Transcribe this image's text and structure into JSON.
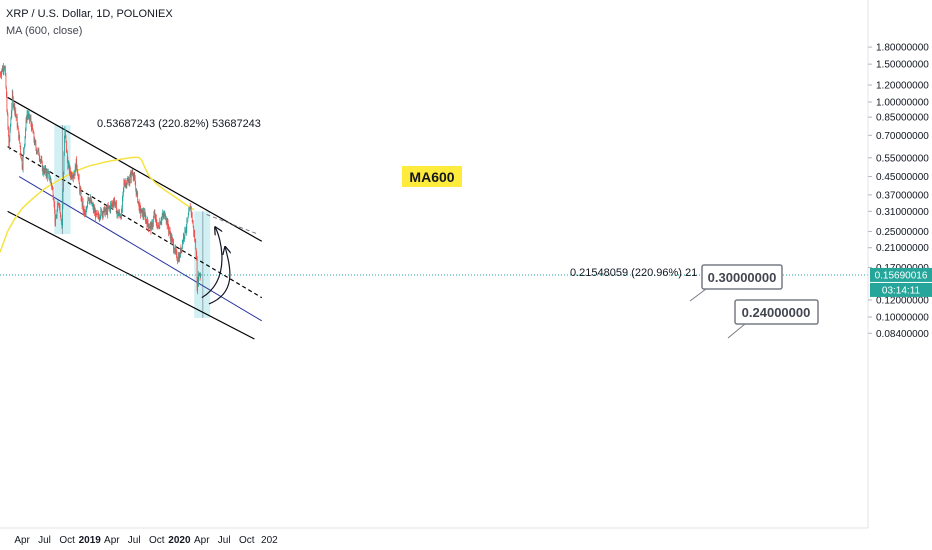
{
  "header": {
    "symbol_line": "XRP / U.S. Dollar, 1D, POLONIEX",
    "indicator_line": "MA (600, close)"
  },
  "chart_data": {
    "type": "line",
    "log_scale": true,
    "grid": false,
    "y_ticks": [
      {
        "v": 1.8,
        "label": "1.80000000"
      },
      {
        "v": 1.5,
        "label": "1.50000000"
      },
      {
        "v": 1.2,
        "label": "1.20000000"
      },
      {
        "v": 1.0,
        "label": "1.00000000"
      },
      {
        "v": 0.85,
        "label": "0.85000000"
      },
      {
        "v": 0.7,
        "label": "0.70000000"
      },
      {
        "v": 0.55,
        "label": "0.55000000"
      },
      {
        "v": 0.45,
        "label": "0.45000000"
      },
      {
        "v": 0.37,
        "label": "0.37000000"
      },
      {
        "v": 0.31,
        "label": "0.31000000"
      },
      {
        "v": 0.25,
        "label": "0.25000000"
      },
      {
        "v": 0.21,
        "label": "0.21000000"
      },
      {
        "v": 0.17,
        "label": "0.17000000"
      },
      {
        "v": 0.12,
        "label": "0.12000000"
      },
      {
        "v": 0.1,
        "label": "0.10000000"
      },
      {
        "v": 0.084,
        "label": "0.08400000"
      }
    ],
    "x_ticks": [
      {
        "d": "2018-04-01",
        "label": "Apr",
        "bold": false
      },
      {
        "d": "2018-07-01",
        "label": "Jul",
        "bold": false
      },
      {
        "d": "2018-10-01",
        "label": "Oct",
        "bold": false
      },
      {
        "d": "2019-01-01",
        "label": "2019",
        "bold": true
      },
      {
        "d": "2019-04-01",
        "label": "Apr",
        "bold": false
      },
      {
        "d": "2019-07-01",
        "label": "Jul",
        "bold": false
      },
      {
        "d": "2019-10-01",
        "label": "Oct",
        "bold": false
      },
      {
        "d": "2020-01-01",
        "label": "2020",
        "bold": true
      },
      {
        "d": "2020-04-01",
        "label": "Apr",
        "bold": false
      },
      {
        "d": "2020-07-01",
        "label": "Jul",
        "bold": false
      },
      {
        "d": "2020-10-01",
        "label": "Oct",
        "bold": false
      },
      {
        "d": "2021-01-01",
        "label": "202",
        "bold": false
      }
    ],
    "series": [
      {
        "name": "XRP / U.S. Dollar",
        "color": "#ef5350",
        "points": [
          [
            "2018-01-01",
            1.35
          ],
          [
            "2018-01-20",
            1.5
          ],
          [
            "2018-02-06",
            0.62
          ],
          [
            "2018-02-20",
            1.05
          ],
          [
            "2018-03-05",
            0.9
          ],
          [
            "2018-03-20",
            0.68
          ],
          [
            "2018-04-02",
            0.5
          ],
          [
            "2018-04-20",
            0.88
          ],
          [
            "2018-05-05",
            0.82
          ],
          [
            "2018-05-25",
            0.62
          ],
          [
            "2018-06-10",
            0.57
          ],
          [
            "2018-06-25",
            0.48
          ],
          [
            "2018-07-10",
            0.47
          ],
          [
            "2018-07-25",
            0.44
          ],
          [
            "2018-08-08",
            0.36
          ],
          [
            "2018-08-14",
            0.27
          ],
          [
            "2018-08-28",
            0.35
          ],
          [
            "2018-09-10",
            0.27
          ],
          [
            "2018-09-21",
            0.75
          ],
          [
            "2018-10-03",
            0.52
          ],
          [
            "2018-10-15",
            0.46
          ],
          [
            "2018-11-01",
            0.47
          ],
          [
            "2018-11-08",
            0.53
          ],
          [
            "2018-11-20",
            0.4
          ],
          [
            "2018-12-05",
            0.32
          ],
          [
            "2018-12-15",
            0.29
          ],
          [
            "2018-12-25",
            0.37
          ],
          [
            "2019-01-10",
            0.33
          ],
          [
            "2019-01-30",
            0.29
          ],
          [
            "2019-02-20",
            0.31
          ],
          [
            "2019-03-10",
            0.31
          ],
          [
            "2019-03-30",
            0.33
          ],
          [
            "2019-04-10",
            0.35
          ],
          [
            "2019-04-25",
            0.3
          ],
          [
            "2019-05-10",
            0.3
          ],
          [
            "2019-05-20",
            0.42
          ],
          [
            "2019-06-10",
            0.43
          ],
          [
            "2019-06-25",
            0.48
          ],
          [
            "2019-07-10",
            0.38
          ],
          [
            "2019-07-25",
            0.31
          ],
          [
            "2019-08-10",
            0.3
          ],
          [
            "2019-08-25",
            0.27
          ],
          [
            "2019-09-10",
            0.26
          ],
          [
            "2019-09-20",
            0.3
          ],
          [
            "2019-10-05",
            0.26
          ],
          [
            "2019-10-20",
            0.29
          ],
          [
            "2019-11-05",
            0.3
          ],
          [
            "2019-11-20",
            0.25
          ],
          [
            "2019-12-05",
            0.22
          ],
          [
            "2019-12-20",
            0.19
          ],
          [
            "2020-01-01",
            0.19
          ],
          [
            "2020-01-18",
            0.24
          ],
          [
            "2020-02-01",
            0.27
          ],
          [
            "2020-02-15",
            0.33
          ],
          [
            "2020-03-01",
            0.24
          ],
          [
            "2020-03-10",
            0.2
          ],
          [
            "2020-03-13",
            0.14
          ],
          [
            "2020-03-20",
            0.16
          ],
          [
            "2020-03-27",
            0.1569
          ]
        ]
      },
      {
        "name": "MA (600, close)",
        "color": "#f5e342",
        "points": [
          [
            "2018-01-01",
            0.2
          ],
          [
            "2018-02-01",
            0.25
          ],
          [
            "2018-03-01",
            0.285
          ],
          [
            "2018-04-01",
            0.32
          ],
          [
            "2018-05-01",
            0.345
          ],
          [
            "2018-06-01",
            0.37
          ],
          [
            "2018-07-01",
            0.395
          ],
          [
            "2018-08-01",
            0.415
          ],
          [
            "2018-09-01",
            0.435
          ],
          [
            "2018-10-01",
            0.455
          ],
          [
            "2018-11-01",
            0.475
          ],
          [
            "2018-12-01",
            0.49
          ],
          [
            "2019-01-01",
            0.505
          ],
          [
            "2019-02-01",
            0.515
          ],
          [
            "2019-03-01",
            0.525
          ],
          [
            "2019-04-01",
            0.533
          ],
          [
            "2019-05-01",
            0.54
          ],
          [
            "2019-06-01",
            0.547
          ],
          [
            "2019-07-01",
            0.553
          ],
          [
            "2019-07-20",
            0.552
          ],
          [
            "2019-08-01",
            0.535
          ],
          [
            "2019-08-15",
            0.49
          ],
          [
            "2019-09-01",
            0.45
          ],
          [
            "2019-10-01",
            0.415
          ],
          [
            "2019-11-01",
            0.39
          ],
          [
            "2019-12-01",
            0.37
          ],
          [
            "2020-01-01",
            0.35
          ],
          [
            "2020-02-01",
            0.33
          ],
          [
            "2020-03-01",
            0.315
          ]
        ]
      }
    ],
    "current_price": {
      "value": 0.1569,
      "label": "0.15690016",
      "countdown": "03:14:11"
    },
    "annotations": {
      "ma_label": "MA600",
      "measure_2018": "0.53687243 (220.82%) 53687243",
      "measure_2020": "0.21548059 (220.96%) 21",
      "target_1": "0.30000000",
      "target_2": "0.24000000"
    },
    "channel": [
      {
        "name": "upper",
        "from": [
          "2018-02-01",
          1.05
        ],
        "to": [
          "2020-12-01",
          0.225
        ]
      },
      {
        "name": "middle-dashed",
        "from": [
          "2018-02-01",
          0.62
        ],
        "to": [
          "2020-12-01",
          0.123
        ]
      },
      {
        "name": "lower-blue",
        "from": [
          "2018-03-20",
          0.45
        ],
        "to": [
          "2020-12-01",
          0.096
        ]
      },
      {
        "name": "bottom",
        "from": [
          "2018-02-01",
          0.31
        ],
        "to": [
          "2020-11-01",
          0.079
        ]
      }
    ]
  },
  "colors": {
    "up": "#26a69a",
    "down": "#ef5350",
    "ma": "#f5e342",
    "channel": "#000000",
    "channel_lower": "#2a35a0",
    "box_fill": "#bde9ef",
    "price_tag": "#26a69a"
  }
}
